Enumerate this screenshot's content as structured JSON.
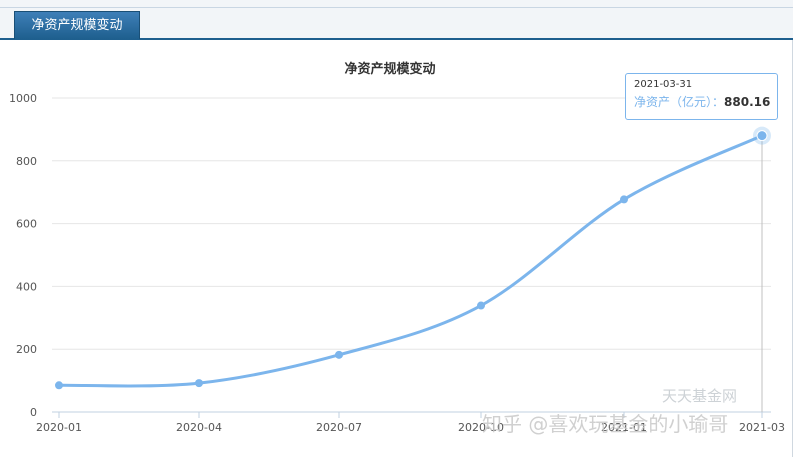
{
  "header": {
    "tab_label": "净资产规模变动"
  },
  "chart_data": {
    "type": "line",
    "title": "净资产规模变动",
    "categories": [
      "2020-01",
      "2020-04",
      "2020-07",
      "2020-10",
      "2021-01",
      "2021-03-31"
    ],
    "x_tick_labels": [
      "2020-01",
      "2020-04",
      "2020-07",
      "2020-10",
      "2021-01",
      "2021-03"
    ],
    "y_ticks": [
      "0",
      "200",
      "400",
      "600",
      "800",
      "1000"
    ],
    "ylim": [
      0,
      1000
    ],
    "grid": true,
    "series": [
      {
        "name": "净资产（亿元）",
        "values": [
          85,
          92,
          182,
          339,
          677,
          880.16
        ],
        "color": "#7cb5ec"
      }
    ]
  },
  "tooltip": {
    "date": "2021-03-31",
    "label": "净资产（亿元）：",
    "value": "880.16"
  },
  "watermarks": {
    "site": "天天基金网",
    "author": "知乎 @喜欢玩基金的小瑜哥"
  }
}
